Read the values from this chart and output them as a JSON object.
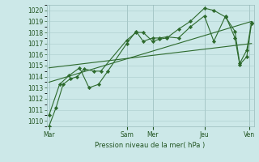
{
  "background_color": "#cce8e8",
  "plot_bg_color": "#cce8e8",
  "grid_color": "#aacccc",
  "line_color": "#2d6a2d",
  "ylim": [
    1009.5,
    1020.5
  ],
  "xlim": [
    -0.1,
    8.7
  ],
  "xlabel_text": "Pression niveau de la mer( hPa )",
  "day_labels": [
    "Mar",
    "Sam",
    "Mer",
    "Jeu",
    "Ven"
  ],
  "day_positions": [
    0.0,
    3.3,
    4.4,
    6.6,
    8.5
  ],
  "series1_x": [
    0.0,
    0.3,
    0.6,
    0.9,
    1.2,
    1.5,
    1.9,
    2.2,
    3.3,
    3.7,
    4.0,
    4.4,
    4.7,
    5.0,
    5.5,
    6.0,
    6.6,
    7.0,
    7.5,
    7.9,
    8.1,
    8.4,
    8.6
  ],
  "series1_y": [
    1009.5,
    1011.2,
    1013.3,
    1013.8,
    1014.0,
    1014.7,
    1014.5,
    1014.5,
    1017.3,
    1018.0,
    1018.0,
    1017.2,
    1017.4,
    1017.5,
    1018.3,
    1019.0,
    1020.2,
    1020.0,
    1019.4,
    1018.1,
    1015.2,
    1016.4,
    1018.9
  ],
  "series2_x": [
    0.0,
    0.45,
    0.85,
    1.3,
    1.7,
    2.1,
    2.5,
    3.3,
    3.7,
    4.0,
    4.4,
    4.7,
    5.0,
    5.5,
    6.0,
    6.6,
    7.0,
    7.5,
    7.9,
    8.1,
    8.4,
    8.6
  ],
  "series2_y": [
    1010.5,
    1013.3,
    1014.1,
    1014.8,
    1013.0,
    1013.3,
    1014.5,
    1017.0,
    1018.1,
    1017.2,
    1017.5,
    1017.5,
    1017.6,
    1017.5,
    1018.5,
    1019.5,
    1017.2,
    1019.5,
    1017.5,
    1015.1,
    1015.8,
    1018.8
  ],
  "trend1_x": [
    0.0,
    8.6
  ],
  "trend1_y": [
    1013.5,
    1019.0
  ],
  "trend2_x": [
    0.0,
    8.6
  ],
  "trend2_y": [
    1014.8,
    1017.0
  ],
  "yticks": [
    1010,
    1011,
    1012,
    1013,
    1014,
    1015,
    1016,
    1017,
    1018,
    1019,
    1020
  ]
}
